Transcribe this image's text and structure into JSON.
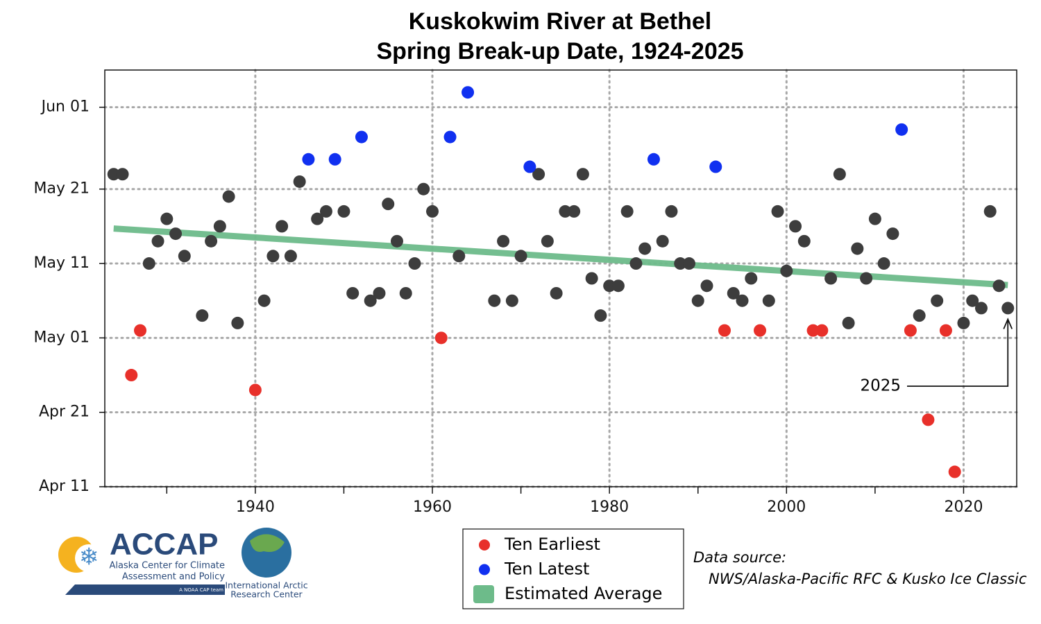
{
  "chart_data": {
    "type": "scatter",
    "title": [
      "Kuskokwim River at Bethel",
      "Spring Break-up Date, 1924-2025"
    ],
    "xlim": [
      1923,
      2026
    ],
    "xticks": [
      1940,
      1960,
      1980,
      2000,
      2020
    ],
    "xminor_ticks": [
      1930,
      1950,
      1970,
      1990,
      2010
    ],
    "ylim": [
      101,
      157
    ],
    "yticks": [
      {
        "value": 101,
        "label": "Apr 11"
      },
      {
        "value": 111,
        "label": "Apr 21"
      },
      {
        "value": 121,
        "label": "May 01"
      },
      {
        "value": 131,
        "label": "May 11"
      },
      {
        "value": 141,
        "label": "May 21"
      },
      {
        "value": 152,
        "label": "Jun 01"
      }
    ],
    "grid": true,
    "series": [
      {
        "name": "Ten Earliest",
        "color": "#e8302a",
        "x": [
          1926,
          1927,
          1940,
          1961,
          1993,
          1997,
          2003,
          2004,
          2014,
          2016,
          2018,
          2019
        ],
        "values": [
          116,
          122,
          114,
          121,
          122,
          122,
          122,
          122,
          122,
          110,
          122,
          103
        ]
      },
      {
        "name": "Ten Latest",
        "color": "#1030f0",
        "x": [
          1946,
          1949,
          1952,
          1962,
          1964,
          1971,
          1985,
          1992,
          2013
        ],
        "values": [
          145,
          145,
          148,
          148,
          154,
          144,
          145,
          144,
          149
        ]
      }
    ],
    "other_points": {
      "color": "#3d3d3d",
      "x": [
        1924,
        1925,
        1928,
        1929,
        1930,
        1931,
        1932,
        1934,
        1935,
        1936,
        1937,
        1938,
        1941,
        1942,
        1943,
        1944,
        1945,
        1947,
        1948,
        1950,
        1951,
        1953,
        1954,
        1955,
        1956,
        1957,
        1958,
        1959,
        1960,
        1963,
        1967,
        1968,
        1969,
        1970,
        1972,
        1973,
        1974,
        1975,
        1976,
        1977,
        1978,
        1979,
        1980,
        1981,
        1982,
        1983,
        1984,
        1986,
        1987,
        1988,
        1989,
        1990,
        1991,
        1994,
        1995,
        1996,
        1998,
        1999,
        2000,
        2001,
        2002,
        2005,
        2006,
        2007,
        2008,
        2009,
        2010,
        2011,
        2012,
        2015,
        2017,
        2020,
        2021,
        2022,
        2023,
        2024,
        2025
      ],
      "values": [
        143,
        143,
        131,
        134,
        137,
        135,
        132,
        124,
        134,
        136,
        140,
        123,
        126,
        132,
        136,
        132,
        142,
        137,
        138,
        138,
        127,
        126,
        127,
        139,
        134,
        127,
        131,
        141,
        138,
        132,
        126,
        134,
        126,
        132,
        143,
        134,
        127,
        138,
        138,
        143,
        129,
        124,
        128,
        128,
        138,
        131,
        133,
        134,
        138,
        131,
        131,
        126,
        128,
        127,
        126,
        129,
        126,
        138,
        130,
        136,
        134,
        129,
        143,
        123,
        133,
        129,
        137,
        131,
        135,
        124,
        126,
        123,
        126,
        125,
        138,
        128,
        125
      ]
    },
    "trend": {
      "name": "Estimated Average",
      "color": "#6dbb8a",
      "x": [
        1924,
        2025
      ],
      "values": [
        135.7,
        128.1
      ]
    },
    "annotation": {
      "text": "2025",
      "x": 2025,
      "y": 125
    },
    "source": [
      "Data source:",
      "NWS/Alaska-Pacific RFC & Kusko Ice Classic"
    ]
  },
  "logos": {
    "accap": [
      "ACCAP",
      "Alaska Center for Climate",
      "Assessment and Policy",
      "A NOAA CAP team"
    ],
    "iarc": [
      "International Arctic",
      "Research Center"
    ]
  }
}
